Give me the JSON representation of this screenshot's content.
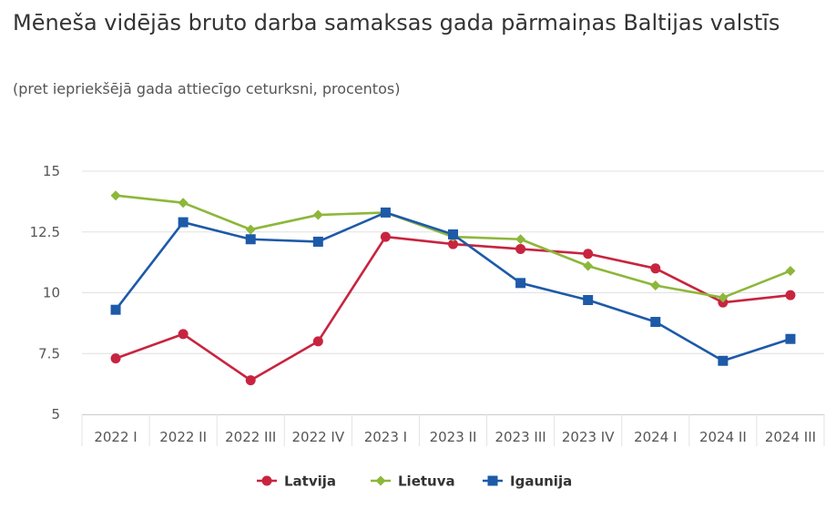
{
  "title": "Mēneša vidējās bruto darba samaksas gada pārmaiņas Baltijas valstīs",
  "subtitle": "(pret iepriekšējā gada attiecīgo ceturksni, procentos)",
  "chart_data": {
    "type": "line",
    "title": "Mēneša vidējās bruto darba samaksas gada pārmaiņas Baltijas valstīs",
    "subtitle": "(pret iepriekšējā gada attiecīgo ceturksni, procentos)",
    "xlabel": "",
    "ylabel": "",
    "ylim": [
      5,
      15
    ],
    "yticks": [
      5,
      7.5,
      10,
      12.5,
      15
    ],
    "ytick_labels": [
      "5",
      "7.5",
      "10",
      "12.5",
      "15"
    ],
    "grid": true,
    "legend_position": "bottom",
    "categories": [
      "2022 I",
      "2022 II",
      "2022 III",
      "2022 IV",
      "2023 I",
      "2023 II",
      "2023 III",
      "2023 IV",
      "2024 I",
      "2024 II",
      "2024 III"
    ],
    "series": [
      {
        "name": "Latvija",
        "color": "#c8243f",
        "marker": "circle",
        "values": [
          7.3,
          8.3,
          6.4,
          8.0,
          12.3,
          12.0,
          11.8,
          11.6,
          11.0,
          9.6,
          9.9
        ]
      },
      {
        "name": "Lietuva",
        "color": "#8db73a",
        "marker": "diamond",
        "values": [
          14.0,
          13.7,
          12.6,
          13.2,
          13.3,
          12.3,
          12.2,
          11.1,
          10.3,
          9.8,
          10.9
        ]
      },
      {
        "name": "Igaunija",
        "color": "#1d5aa8",
        "marker": "square",
        "values": [
          9.3,
          12.9,
          12.2,
          12.1,
          13.3,
          12.4,
          10.4,
          9.7,
          8.8,
          7.2,
          8.1
        ]
      }
    ]
  }
}
